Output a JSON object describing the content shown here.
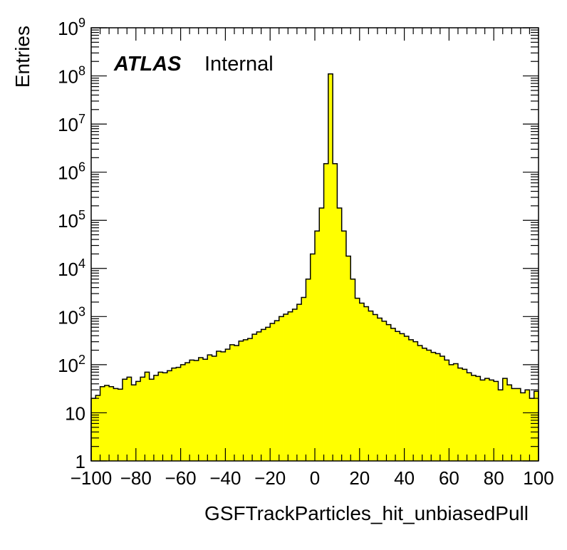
{
  "chart_data": {
    "type": "histogram",
    "title": "",
    "xlabel": "GSFTrackParticles_hit_unbiasedPull",
    "ylabel": "Entries",
    "xlim": [
      -100,
      100
    ],
    "ylim": [
      1,
      1000000000
    ],
    "y_scale": "log",
    "grid": false,
    "fill_color": "#ffff00",
    "line_color": "#000000",
    "label": {
      "atlas": "ATLAS",
      "status": "Internal"
    },
    "x_ticks": [
      {
        "value": -100,
        "label": "−100"
      },
      {
        "value": -80,
        "label": "−80"
      },
      {
        "value": -60,
        "label": "−60"
      },
      {
        "value": -40,
        "label": "−40"
      },
      {
        "value": -20,
        "label": "−20"
      },
      {
        "value": 0,
        "label": "0"
      },
      {
        "value": 20,
        "label": "20"
      },
      {
        "value": 40,
        "label": "40"
      },
      {
        "value": 60,
        "label": "60"
      },
      {
        "value": 80,
        "label": "80"
      },
      {
        "value": 100,
        "label": "100"
      }
    ],
    "y_ticks": [
      {
        "value": 1,
        "base": "1",
        "exp": ""
      },
      {
        "value": 10,
        "base": "10",
        "exp": ""
      },
      {
        "value": 100,
        "base": "10",
        "exp": "2"
      },
      {
        "value": 1000,
        "base": "10",
        "exp": "3"
      },
      {
        "value": 10000,
        "base": "10",
        "exp": "4"
      },
      {
        "value": 100000,
        "base": "10",
        "exp": "5"
      },
      {
        "value": 1000000,
        "base": "10",
        "exp": "6"
      },
      {
        "value": 10000000,
        "base": "10",
        "exp": "7"
      },
      {
        "value": 100000000,
        "base": "10",
        "exp": "8"
      },
      {
        "value": 1000000000,
        "base": "10",
        "exp": "9"
      }
    ],
    "bin_width": 2,
    "bin_edges_start": -100,
    "values": [
      20,
      23,
      35,
      37,
      35,
      32,
      31,
      50,
      55,
      38,
      45,
      55,
      70,
      50,
      60,
      70,
      68,
      75,
      85,
      88,
      100,
      110,
      125,
      122,
      140,
      130,
      160,
      150,
      190,
      185,
      210,
      260,
      250,
      310,
      330,
      350,
      430,
      480,
      540,
      600,
      720,
      820,
      1000,
      1120,
      1250,
      1420,
      1800,
      2500,
      6000,
      20000,
      60000,
      180000,
      1500000,
      110000000,
      1500000,
      180000,
      60000,
      18000,
      6000,
      2400,
      1900,
      1600,
      1300,
      1100,
      930,
      800,
      680,
      570,
      490,
      440,
      390,
      330,
      300,
      250,
      220,
      200,
      180,
      170,
      150,
      125,
      100,
      105,
      85,
      80,
      68,
      60,
      57,
      48,
      52,
      48,
      45,
      30,
      52,
      38,
      32,
      32,
      26,
      30,
      20,
      28
    ]
  }
}
